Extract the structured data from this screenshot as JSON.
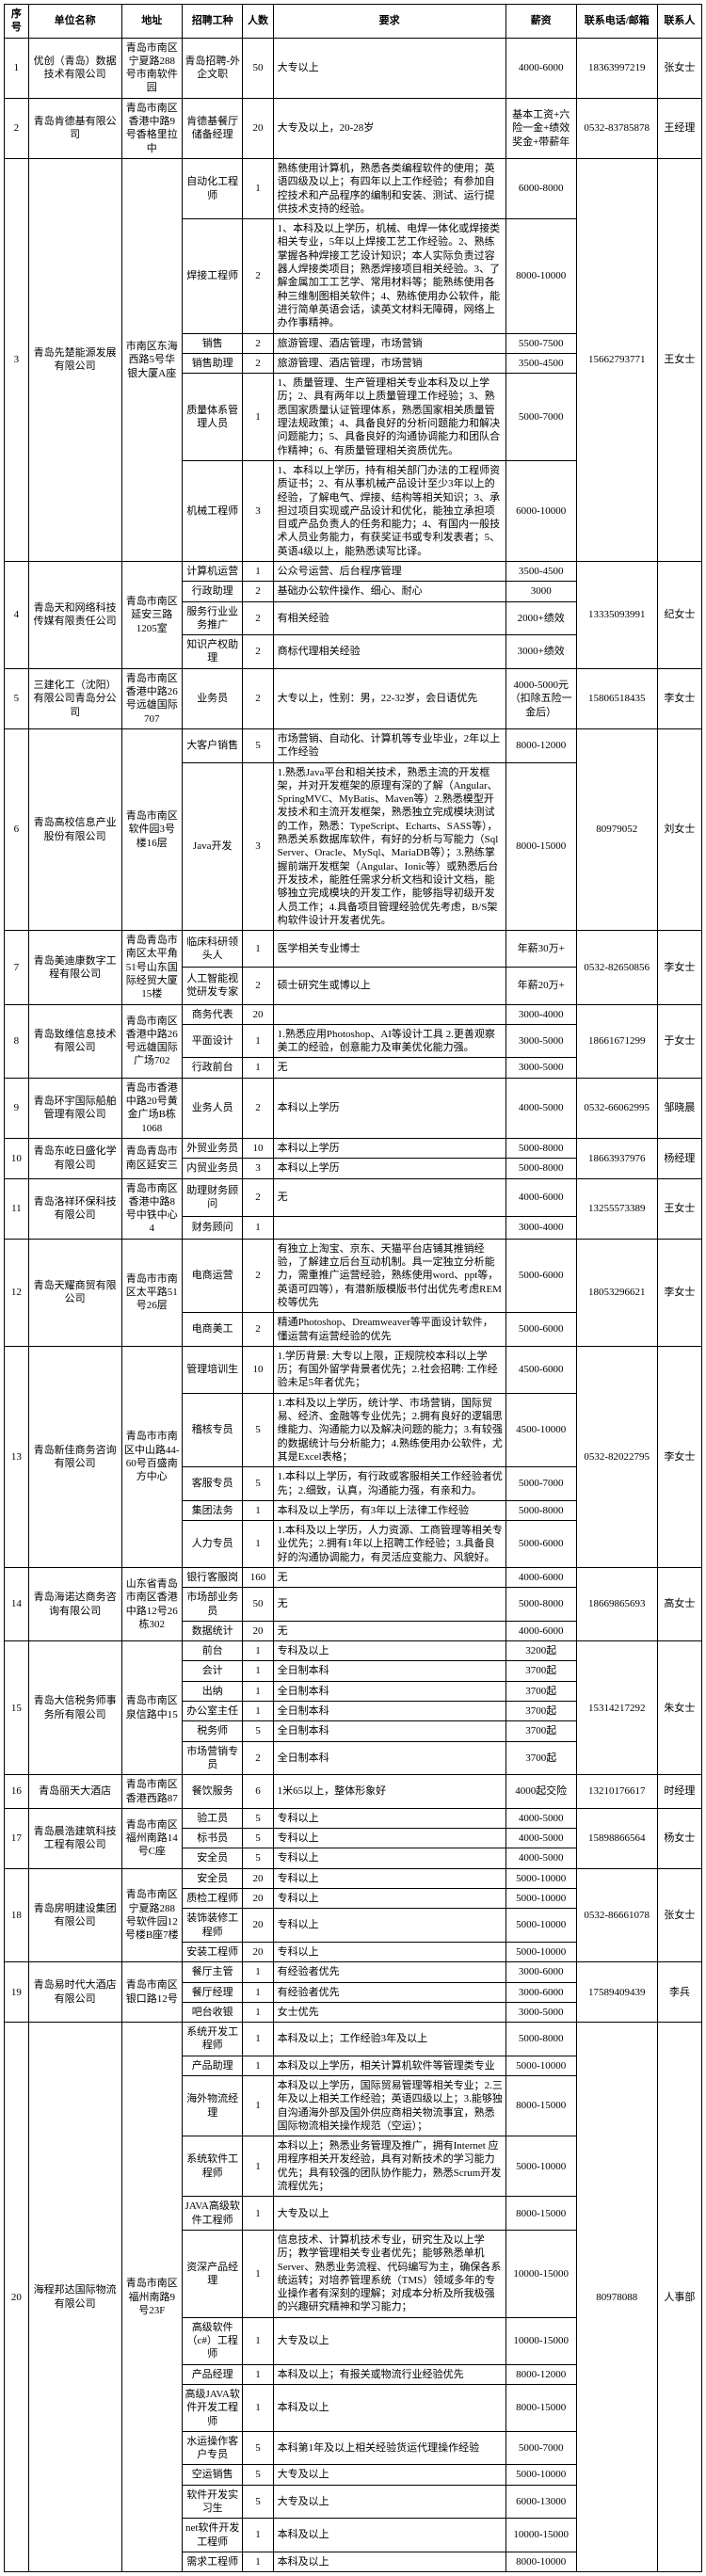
{
  "headers": [
    "序号",
    "单位名称",
    "地址",
    "招聘工种",
    "人数",
    "要求",
    "薪资",
    "联系电话/邮箱",
    "联系人"
  ],
  "companies": [
    {
      "idx": "1",
      "org": "优创（青岛）数据技术有限公司",
      "addr": "青岛市南区宁夏路288号市南软件园",
      "tel": "18363997219",
      "contact": "张女士",
      "jobs": [
        {
          "job": "青岛招聘-外企文职",
          "num": "50",
          "req": "大专以上",
          "sal": "4000-6000"
        }
      ]
    },
    {
      "idx": "2",
      "org": "青岛肯德基有限公司",
      "addr": "青岛市南区香港中路9号香格里拉中",
      "tel": "0532-83785878",
      "contact": "王经理",
      "jobs": [
        {
          "job": "肯德基餐厅储备经理",
          "num": "20",
          "req": "大专及以上，20-28岁",
          "sal": "基本工资+六险一金+绩效奖金+带薪年"
        }
      ]
    },
    {
      "idx": "3",
      "org": "青岛先楚能源发展有限公司",
      "addr": "市南区东海西路5号华银大厦A座",
      "tel": "15662793771",
      "contact": "王女士",
      "jobs": [
        {
          "job": "自动化工程师",
          "num": "1",
          "req": "熟练使用计算机，熟悉各类编程软件的使用；英语四级及以上；有四年以上工作经验；有参加自控技术和产品程序的编制和安装、测试、运行提供技术支持的经验。",
          "sal": "6000-8000"
        },
        {
          "job": "焊接工程师",
          "num": "2",
          "req": "1、本科及以上学历，机械、电焊一体化或焊接类相关专业，5年以上焊接工艺工作经验。2、熟练掌握各种焊接工艺设计知识；本人实际负责过容器人焊接类项目；熟悉焊接项目相关经验。3、了解金属加工工艺学、常用材料等；能熟练使用各种三维制图相关软件；4、熟练使用办公软件，能进行简单英语会话，读英文材料无障碍，网络上办作事精神。",
          "sal": "8000-10000"
        },
        {
          "job": "销售",
          "num": "2",
          "req": "旅游管理、酒店管理，市场营销",
          "sal": "5500-7500"
        },
        {
          "job": "销售助理",
          "num": "2",
          "req": "旅游管理、酒店管理，市场营销",
          "sal": "3500-4500"
        },
        {
          "job": "质量体系管理人员",
          "num": "1",
          "req": "1、质量管理、生产管理相关专业本科及以上学历；2、具有两年以上质量管理工作经验；3、熟悉国家质量认证管理体系，熟悉国家相关质量管理法规政策；4、具备良好的分析问题能力和解决问题能力；5、具备良好的沟通协调能力和团队合作精神；6、有质量管理相关资质优先。",
          "sal": "5000-7000"
        },
        {
          "job": "机械工程师",
          "num": "3",
          "req": "1、本科以上学历，持有相关部门办法的工程师资质证书；2、有从事机械产品设计至少3年以上的经验，了解电气、焊接、结构等相关知识；3、承担过项目实现或产品设计和优化，能独立承担项目或产品负责人的任务和能力；4、有国内一般技术人员业务能力，有获奖证书或专利发表者；5、英语4级以上，能熟悉读写比译。",
          "sal": "6000-10000"
        }
      ]
    },
    {
      "idx": "4",
      "org": "青岛天和网络科技传媒有限责任公司",
      "addr": "青岛市南区延安三路1205室",
      "tel": "13335093991",
      "contact": "纪女士",
      "jobs": [
        {
          "job": "计算机运营",
          "num": "1",
          "req": "公众号运营、后台程序管理",
          "sal": "3500-4500"
        },
        {
          "job": "行政助理",
          "num": "2",
          "req": "基础办公软件操作、细心、耐心",
          "sal": "3000"
        },
        {
          "job": "服务行业业务推广",
          "num": "2",
          "req": "有相关经验",
          "sal": "2000+绩效"
        },
        {
          "job": "知识产权助理",
          "num": "2",
          "req": "商标代理相关经验",
          "sal": "3000+绩效"
        }
      ]
    },
    {
      "idx": "5",
      "org": "三建化工（沈阳）有限公司青岛分公司",
      "addr": "青岛市南区香港中路26号远雄国际707",
      "tel": "15806518435",
      "contact": "李女士",
      "jobs": [
        {
          "job": "业务员",
          "num": "2",
          "req": "大专以上，性别：男，22-32岁，会日语优先",
          "sal": "4000-5000元（扣除五险一金后）"
        }
      ]
    },
    {
      "idx": "6",
      "org": "青岛高校信息产业股份有限公司",
      "addr": "青岛市南区软件园3号楼16层",
      "tel": "80979052",
      "contact": "刘女士",
      "jobs": [
        {
          "job": "大客户销售",
          "num": "5",
          "req": "市场营销、自动化、计算机等专业毕业，2年以上工作经验",
          "sal": "8000-12000"
        },
        {
          "job": "Java开发",
          "num": "3",
          "req": "1.熟悉Java平台和相关技术，熟悉主流的开发框架，并对开发框架的原理有深的了解（Angular、SpringMVC、MyBatis、Maven等）2.熟悉模型开发技术和主流开发框架，熟悉独立完成模块测试的工作，熟悉：TypeScript、Echarts、SASS等），熟悉关系数据库软件，有好的分析与写能力（Sql Server、Oracle、MySql、MariaDB等）；3.熟练掌握前端开发框架（Angular、Ionic等）或熟悉后台开发技术，能胜任需求分析文档和设计文档，能够独立完成模块的开发工作，能够指导初级开发人员工作；4.具备项目管理经验优先考虑，B/S架构软件设计开发者优先。",
          "sal": "8000-15000"
        }
      ]
    },
    {
      "idx": "7",
      "org": "青岛美迪康数字工程有限公司",
      "addr": "青岛青岛市南区太平角51号山东国际经贸大厦15楼",
      "tel": "0532-82650856",
      "contact": "李女士",
      "jobs": [
        {
          "job": "临床科研领头人",
          "num": "1",
          "req": "医学相关专业博士",
          "sal": "年薪30万+"
        },
        {
          "job": "人工智能视觉研发专家",
          "num": "2",
          "req": "硕士研究生或博以上",
          "sal": "年薪20万+"
        }
      ]
    },
    {
      "idx": "8",
      "org": "青岛致维信息技术有限公司",
      "addr": "青岛市南区香港中路26号远雄国际广场702",
      "tel": "18661671299",
      "contact": "于女士",
      "jobs": [
        {
          "job": "商务代表",
          "num": "20",
          "req": "",
          "sal": "3000-4000"
        },
        {
          "job": "平面设计",
          "num": "1",
          "req": "1.熟悉应用Photoshop、AI等设计工具 2.更善观察美工的经验，创意能力及审美优化能力强。",
          "sal": "3000-5000"
        },
        {
          "job": "行政前台",
          "num": "1",
          "req": "无",
          "sal": "3000-5000"
        }
      ]
    },
    {
      "idx": "9",
      "org": "青岛环宇国际船舶管理有限公司",
      "addr": "青岛市香港中路20号黄金广场B栋1068",
      "tel": "0532-66062995",
      "contact": "邹晓晨",
      "jobs": [
        {
          "job": "业务人员",
          "num": "2",
          "req": "本科以上学历",
          "sal": "4000-5000"
        }
      ]
    },
    {
      "idx": "10",
      "org": "青岛东屹日盛化学有限公司",
      "addr": "青岛青岛市南区延安三",
      "tel": "18663937976",
      "contact": "杨经理",
      "jobs": [
        {
          "job": "外贸业务员",
          "num": "10",
          "req": "本科以上学历",
          "sal": "5000-8000"
        },
        {
          "job": "内贸业务员",
          "num": "3",
          "req": "本科以上学历",
          "sal": "5000-8000"
        }
      ]
    },
    {
      "idx": "11",
      "org": "青岛洛祥环保科技有限公司",
      "addr": "青岛市南区香港中路8号中铁中心4",
      "tel": "13255573389",
      "contact": "王女士",
      "jobs": [
        {
          "job": "助理财务顾问",
          "num": "2",
          "req": "无",
          "sal": "4000-6000"
        },
        {
          "job": "财务顾问",
          "num": "1",
          "req": "",
          "sal": "3000-4000"
        }
      ]
    },
    {
      "idx": "12",
      "org": "青岛天耀商贸有限公司",
      "addr": "青岛市市南区太平路51号26层",
      "tel": "18053296621",
      "contact": "李女士",
      "jobs": [
        {
          "job": "电商运营",
          "num": "2",
          "req": "有独立上淘宝、京东、天猫平台店铺其推销经验，了解建立后台互动机制。具一定独立分析能力，需重推广运营经验，熟练使用word、ppt等，英语可四等），有潜新版模版书付出优先考虑REM校等优先",
          "sal": "5000-6000"
        },
        {
          "job": "电商美工",
          "num": "2",
          "req": "精通Photoshop、Dreamweaver等平面设计软件，懂运营有运营经验的优先",
          "sal": "5000-6000"
        }
      ]
    },
    {
      "idx": "13",
      "org": "青岛新佳商务咨询有限公司",
      "addr": "青岛市市南区中山路44-60号百盛南方中心",
      "tel": "0532-82022795",
      "contact": "李女士",
      "jobs": [
        {
          "job": "管理培训生",
          "num": "10",
          "req": "1.学历背景: 大专以上限，正规院校本科以上学历；有国外留学背景者优先；2.社会招聘: 工作经验未足5年者优先；",
          "sal": "4500-6000"
        },
        {
          "job": "稽核专员",
          "num": "5",
          "req": "1.本科及以上学历，统计学、市场营销，国际贸易、经济、金融等专业优先；2.拥有良好的逻辑思维能力、沟通能力以及解决问题的能力；3.有较强的数据统计与分析能力；4.熟练使用办公软件，尤其是Excel表格；",
          "sal": "4500-10000"
        },
        {
          "job": "客服专员",
          "num": "5",
          "req": "1.本科以上学历，有行政或客服相关工作经验者优先；2.细致，认真，沟通能力强，有亲和力。",
          "sal": "5000-7000"
        },
        {
          "job": "集团法务",
          "num": "1",
          "req": "本科及以上学历，有3年以上法律工作经验",
          "sal": "5000-8000"
        },
        {
          "job": "人力专员",
          "num": "1",
          "req": "1.本科及以上学历，人力资源、工商管理等相关专业优先；2.拥有1年以上招聘工作经验；3.具备良好的沟通协调能力，有灵活应变能力、风貌好。",
          "sal": "5000-6000"
        }
      ]
    },
    {
      "idx": "14",
      "org": "青岛海诺达商务咨询有限公司",
      "addr": "山东省青岛市南区香港中路12号26栋302",
      "tel": "18669865693",
      "contact": "高女士",
      "jobs": [
        {
          "job": "银行客服岗",
          "num": "160",
          "req": "无",
          "sal": "4000-6000"
        },
        {
          "job": "市场部业务员",
          "num": "50",
          "req": "无",
          "sal": "5000-8000"
        },
        {
          "job": "数据统计",
          "num": "20",
          "req": "无",
          "sal": "4000-6000"
        }
      ]
    },
    {
      "idx": "15",
      "org": "青岛大信税务师事务所有限公司",
      "addr": "青岛市南区泉信路中15",
      "tel": "15314217292",
      "contact": "朱女士",
      "jobs": [
        {
          "job": "前台",
          "num": "1",
          "req": "专科及以上",
          "sal": "3200起"
        },
        {
          "job": "会计",
          "num": "1",
          "req": "全日制本科",
          "sal": "3700起"
        },
        {
          "job": "出纳",
          "num": "1",
          "req": "全日制本科",
          "sal": "3700起"
        },
        {
          "job": "办公室主任",
          "num": "1",
          "req": "全日制本科",
          "sal": "3700起"
        },
        {
          "job": "税务师",
          "num": "5",
          "req": "全日制本科",
          "sal": "3700起"
        },
        {
          "job": "市场营销专员",
          "num": "2",
          "req": "全日制本科",
          "sal": "3700起"
        }
      ]
    },
    {
      "idx": "16",
      "org": "青岛丽天大酒店",
      "addr": "青岛市南区香港西路87",
      "tel": "13210176617",
      "contact": "时经理",
      "jobs": [
        {
          "job": "餐饮服务",
          "num": "6",
          "req": "1米65以上，整体形象好",
          "sal": "4000起交险"
        }
      ]
    },
    {
      "idx": "17",
      "org": "青岛晨浩建筑科技工程有限公司",
      "addr": "青岛市南区福州南路14号C座",
      "tel": "15898866564",
      "contact": "杨女士",
      "jobs": [
        {
          "job": "验工员",
          "num": "5",
          "req": "专科以上",
          "sal": "4000-5000"
        },
        {
          "job": "标书员",
          "num": "5",
          "req": "专科以上",
          "sal": "4000-5000"
        },
        {
          "job": "安全员",
          "num": "5",
          "req": "专科以上",
          "sal": "4000-5000"
        }
      ]
    },
    {
      "idx": "18",
      "org": "青岛房明建设集团有限公司",
      "addr": "青岛市南区宁夏路288号软件园12号楼B座7楼",
      "tel": "0532-86661078",
      "contact": "张女士",
      "jobs": [
        {
          "job": "安全员",
          "num": "20",
          "req": "专科以上",
          "sal": "5000-10000"
        },
        {
          "job": "质检工程师",
          "num": "20",
          "req": "专科以上",
          "sal": "5000-10000"
        },
        {
          "job": "装饰装修工程师",
          "num": "20",
          "req": "专科以上",
          "sal": "5000-10000"
        },
        {
          "job": "安装工程师",
          "num": "20",
          "req": "专科以上",
          "sal": "5000-10000"
        }
      ]
    },
    {
      "idx": "19",
      "org": "青岛易时代大酒店有限公司",
      "addr": "青岛市南区银口路12号",
      "tel": "17589409439",
      "contact": "李兵",
      "jobs": [
        {
          "job": "餐厅主管",
          "num": "1",
          "req": "有经验者优先",
          "sal": "3000-6000"
        },
        {
          "job": "餐厅经理",
          "num": "1",
          "req": "有经验者优先",
          "sal": "3000-6000"
        },
        {
          "job": "吧台收银",
          "num": "1",
          "req": "女士优先",
          "sal": "3000-5000"
        }
      ]
    },
    {
      "idx": "20",
      "org": "海程邦达国际物流有限公司",
      "addr": "青岛市南区福州南路9号23F",
      "tel": "80978088",
      "contact": "人事部",
      "jobs": [
        {
          "job": "系统开发工程师",
          "num": "1",
          "req": "本科及以上；工作经验3年及以上",
          "sal": "5000-8000"
        },
        {
          "job": "产品助理",
          "num": "1",
          "req": "本科及以上学历，相关计算机软件等管理类专业",
          "sal": "5000-10000"
        },
        {
          "job": "海外物流经理",
          "num": "1",
          "req": "本科及以上学历，国际贸易管理等相关专业；2.三年及以上相关工作经验；英语四级以上；3.能够独自沟通海外部及国外供应商相关物流事宜，熟悉国际物流相关操作规范（空运）；",
          "sal": "8000-15000"
        },
        {
          "job": "系统软件工程师",
          "num": "1",
          "req": "本科以上；熟悉业务管理及推广，拥有Internet 应用程序相关开发经验，具有对新技术的学习能力优先；具有较强的团队协作能力，熟悉Scrum开发流程优先；",
          "sal": "5000-10000"
        },
        {
          "job": "JAVA高级软件工程师",
          "num": "1",
          "req": "大专及以上",
          "sal": "8000-15000"
        },
        {
          "job": "资深产品经理",
          "num": "1",
          "req": "信息技术、计算机技术专业，研究生及以上学历；教学管理相关专业者优先；能够熟悉单机Server、熟悉业务流程、代码编写为主，确保各系统运转；对培养管理系统（TMS）领域多年的专业操作者有深刻的理解；对成本分析及所我极强的兴趣研究精神和学习能力；",
          "sal": "10000-15000"
        },
        {
          "job": "高级软件（c#）工程师",
          "num": "1",
          "req": "大专及以上",
          "sal": "10000-15000"
        },
        {
          "job": "产品经理",
          "num": "1",
          "req": "本科及以上；有报关或物流行业经验优先",
          "sal": "8000-12000"
        },
        {
          "job": "高级JAVA软件开发工程师",
          "num": "1",
          "req": "本科及以上",
          "sal": "8000-15000"
        },
        {
          "job": "水运操作客户专员",
          "num": "5",
          "req": "本科第1年及以上相关经验货运代理操作经验",
          "sal": "5000-7000"
        },
        {
          "job": "空运销售",
          "num": "5",
          "req": "大专及以上",
          "sal": "5000-10000"
        },
        {
          "job": "软件开发实习生",
          "num": "5",
          "req": "大专及以上",
          "sal": "6000-13000"
        },
        {
          "job": "net软件开发工程师",
          "num": "1",
          "req": "本科及以上",
          "sal": "10000-15000"
        },
        {
          "job": "需求工程师",
          "num": "1",
          "req": "本科及以上",
          "sal": "8000-10000"
        }
      ]
    }
  ]
}
